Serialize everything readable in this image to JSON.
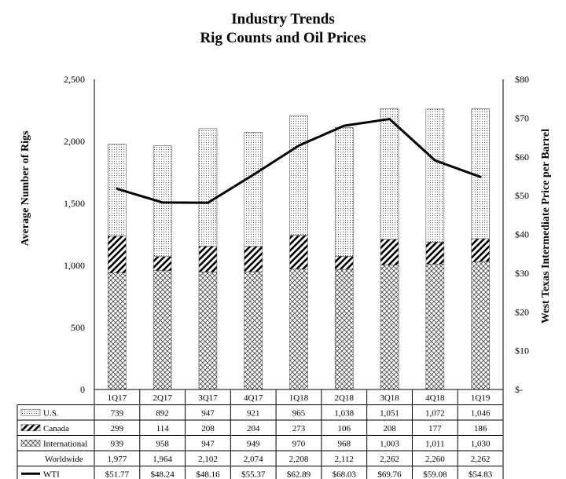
{
  "chart_data": {
    "type": "bar",
    "title": "Industry Trends",
    "subtitle": "Rig Counts and Oil Prices",
    "ylabel": "Average Number of Rigs",
    "y2label": "West Texas Intermediate Price per Barrel",
    "ylim": [
      0,
      2500
    ],
    "y2lim": [
      0,
      80
    ],
    "yticks": [
      "0",
      "500",
      "1,000",
      "1,500",
      "2,000",
      "2,500"
    ],
    "y2ticks": [
      "$-",
      "$10",
      "$20",
      "$30",
      "$40",
      "$50",
      "$60",
      "$70",
      "$80"
    ],
    "categories": [
      "1Q17",
      "2Q17",
      "3Q17",
      "4Q17",
      "1Q18",
      "2Q18",
      "3Q18",
      "4Q18",
      "1Q19"
    ],
    "stacked": true,
    "series": [
      {
        "name": "International",
        "pattern": "crosshatch",
        "values": [
          939,
          958,
          947,
          949,
          970,
          968,
          1003,
          1011,
          1030
        ],
        "labels": [
          "939",
          "958",
          "947",
          "949",
          "970",
          "968",
          "1,003",
          "1,011",
          "1,030"
        ]
      },
      {
        "name": "Canada",
        "pattern": "diagonal",
        "values": [
          299,
          114,
          208,
          204,
          273,
          106,
          208,
          177,
          186
        ],
        "labels": [
          "299",
          "114",
          "208",
          "204",
          "273",
          "106",
          "208",
          "177",
          "186"
        ]
      },
      {
        "name": "U.S.",
        "pattern": "dotted",
        "values": [
          739,
          892,
          947,
          921,
          965,
          1038,
          1051,
          1072,
          1046
        ],
        "labels": [
          "739",
          "892",
          "947",
          "921",
          "965",
          "1,038",
          "1,051",
          "1,072",
          "1,046"
        ]
      }
    ],
    "total": {
      "name": "Worldwide",
      "values": [
        1977,
        1964,
        2102,
        2074,
        2208,
        2112,
        2262,
        2260,
        2262
      ],
      "labels": [
        "1,977",
        "1,964",
        "2,102",
        "2,074",
        "2,208",
        "2,112",
        "2,262",
        "2,260",
        "2,262"
      ]
    },
    "line": {
      "name": "WTI",
      "axis": "right",
      "values": [
        51.77,
        48.24,
        48.16,
        55.37,
        62.89,
        68.03,
        69.76,
        59.08,
        54.83
      ],
      "labels": [
        "$51.77",
        "$48.24",
        "$48.16",
        "$55.37",
        "$62.89",
        "$68.03",
        "$69.76",
        "$59.08",
        "$54.83"
      ],
      "color": "#000000"
    },
    "table_rows": [
      "U.S.",
      "Canada",
      "International",
      "Worldwide",
      "WTI"
    ],
    "grid": false
  }
}
